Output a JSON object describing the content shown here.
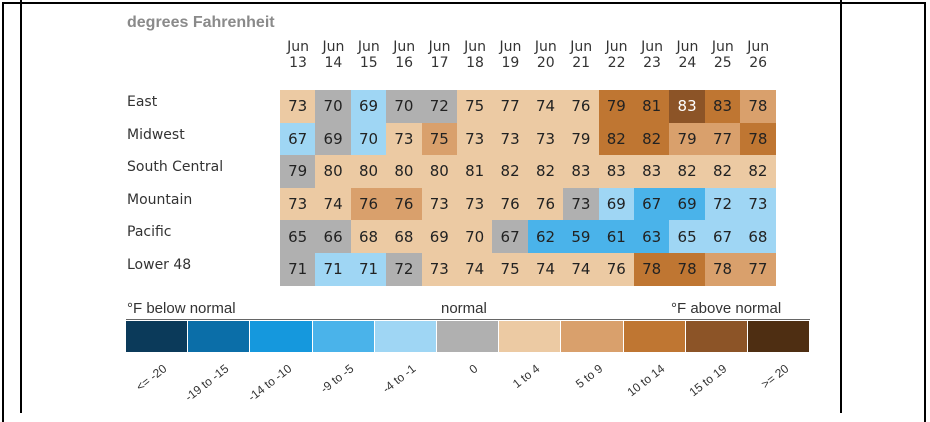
{
  "chart_data": {
    "type": "heatmap",
    "subtitle": "degrees Fahrenheit",
    "dates": [
      [
        "Jun",
        "13"
      ],
      [
        "Jun",
        "14"
      ],
      [
        "Jun",
        "15"
      ],
      [
        "Jun",
        "16"
      ],
      [
        "Jun",
        "17"
      ],
      [
        "Jun",
        "18"
      ],
      [
        "Jun",
        "19"
      ],
      [
        "Jun",
        "20"
      ],
      [
        "Jun",
        "21"
      ],
      [
        "Jun",
        "22"
      ],
      [
        "Jun",
        "23"
      ],
      [
        "Jun",
        "24"
      ],
      [
        "Jun",
        "25"
      ],
      [
        "Jun",
        "26"
      ]
    ],
    "regions": [
      "East",
      "Midwest",
      "South Central",
      "Mountain",
      "Pacific",
      "Lower 48"
    ],
    "values": [
      [
        73,
        70,
        69,
        70,
        72,
        75,
        77,
        74,
        76,
        79,
        81,
        83,
        83,
        78
      ],
      [
        67,
        69,
        70,
        73,
        75,
        73,
        73,
        73,
        79,
        82,
        82,
        79,
        77,
        78
      ],
      [
        79,
        80,
        80,
        80,
        80,
        81,
        82,
        82,
        83,
        83,
        83,
        82,
        82,
        82
      ],
      [
        73,
        74,
        76,
        76,
        73,
        73,
        76,
        76,
        73,
        69,
        67,
        69,
        72,
        73
      ],
      [
        65,
        66,
        68,
        68,
        69,
        70,
        67,
        62,
        59,
        61,
        63,
        65,
        67,
        68
      ],
      [
        71,
        71,
        71,
        72,
        73,
        74,
        75,
        74,
        74,
        76,
        78,
        78,
        78,
        77
      ]
    ],
    "anomaly_category": [
      [
        6,
        5,
        4,
        5,
        5,
        6,
        6,
        6,
        6,
        8,
        8,
        9,
        8,
        7
      ],
      [
        4,
        5,
        4,
        6,
        7,
        6,
        6,
        6,
        6,
        8,
        8,
        7,
        7,
        8
      ],
      [
        5,
        6,
        6,
        6,
        6,
        6,
        6,
        6,
        6,
        6,
        6,
        6,
        6,
        6
      ],
      [
        6,
        6,
        7,
        7,
        6,
        6,
        6,
        6,
        5,
        4,
        3,
        3,
        4,
        4
      ],
      [
        5,
        5,
        6,
        6,
        6,
        6,
        5,
        3,
        3,
        3,
        3,
        4,
        4,
        4
      ],
      [
        5,
        4,
        4,
        5,
        6,
        6,
        6,
        6,
        6,
        6,
        8,
        8,
        7,
        7
      ]
    ],
    "legend": {
      "left_title": "°F below normal",
      "center_title": "normal",
      "right_title": "°F above normal",
      "categories": [
        "<= -20",
        "-19 to -15",
        "-14 to -10",
        "-9 to -5",
        "-4 to -1",
        "0",
        "1 to 4",
        "5 to 9",
        "10 to 14",
        "15 to 19",
        ">= 20"
      ],
      "colors": [
        "#0b3a5a",
        "#0b6ea8",
        "#1598dd",
        "#4ab3ea",
        "#9fd6f4",
        "#b0b0b0",
        "#eccaa3",
        "#d9a06c",
        "#bf7632",
        "#8c5427",
        "#4e2e12"
      ]
    }
  }
}
